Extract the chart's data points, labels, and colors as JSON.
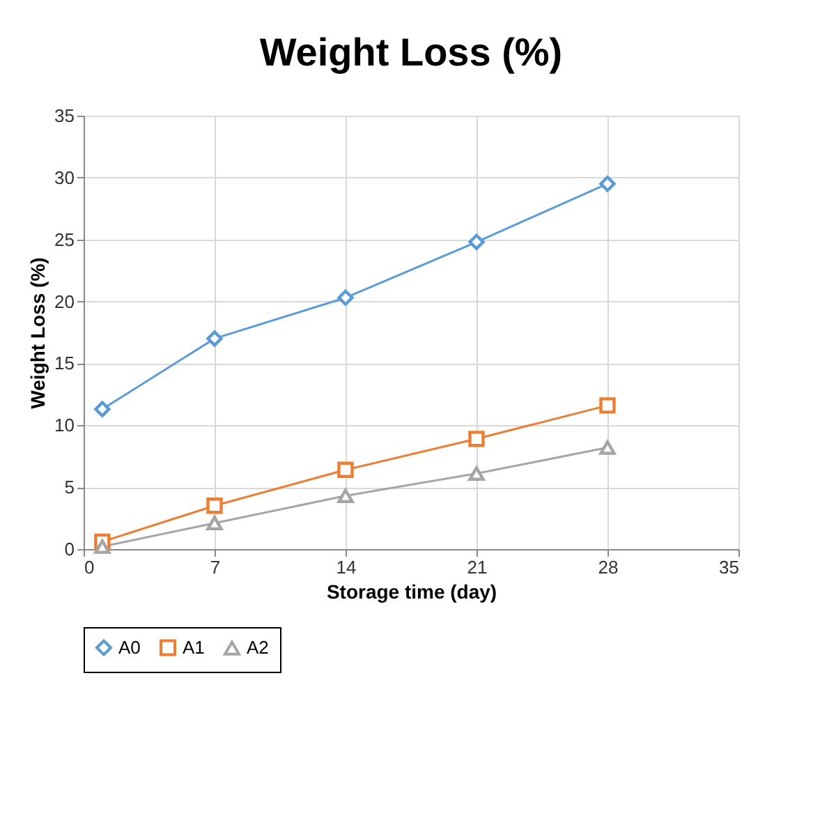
{
  "chart_data": {
    "type": "line",
    "title": "Weight Loss (%)",
    "xlabel": "Storage time (day)",
    "ylabel": "Weight Loss (%)",
    "x": [
      1,
      7,
      14,
      21,
      28
    ],
    "series": [
      {
        "name": "A0",
        "color": "#5b9bd5",
        "marker": "diamond",
        "values": [
          11.3,
          17.0,
          20.3,
          24.8,
          29.5
        ]
      },
      {
        "name": "A1",
        "color": "#ed7d31",
        "marker": "square",
        "values": [
          0.6,
          3.5,
          6.4,
          8.9,
          11.6
        ]
      },
      {
        "name": "A2",
        "color": "#a5a5a5",
        "marker": "triangle",
        "values": [
          0.2,
          2.1,
          4.3,
          6.1,
          8.2
        ]
      }
    ],
    "xlim": [
      0,
      35
    ],
    "xticks": [
      0,
      7,
      14,
      21,
      28,
      35
    ],
    "ylim": [
      0,
      35
    ],
    "yticks": [
      0,
      5,
      10,
      15,
      20,
      25,
      30,
      35
    ],
    "grid": true,
    "legend": "bottom",
    "line_style": "solid"
  }
}
